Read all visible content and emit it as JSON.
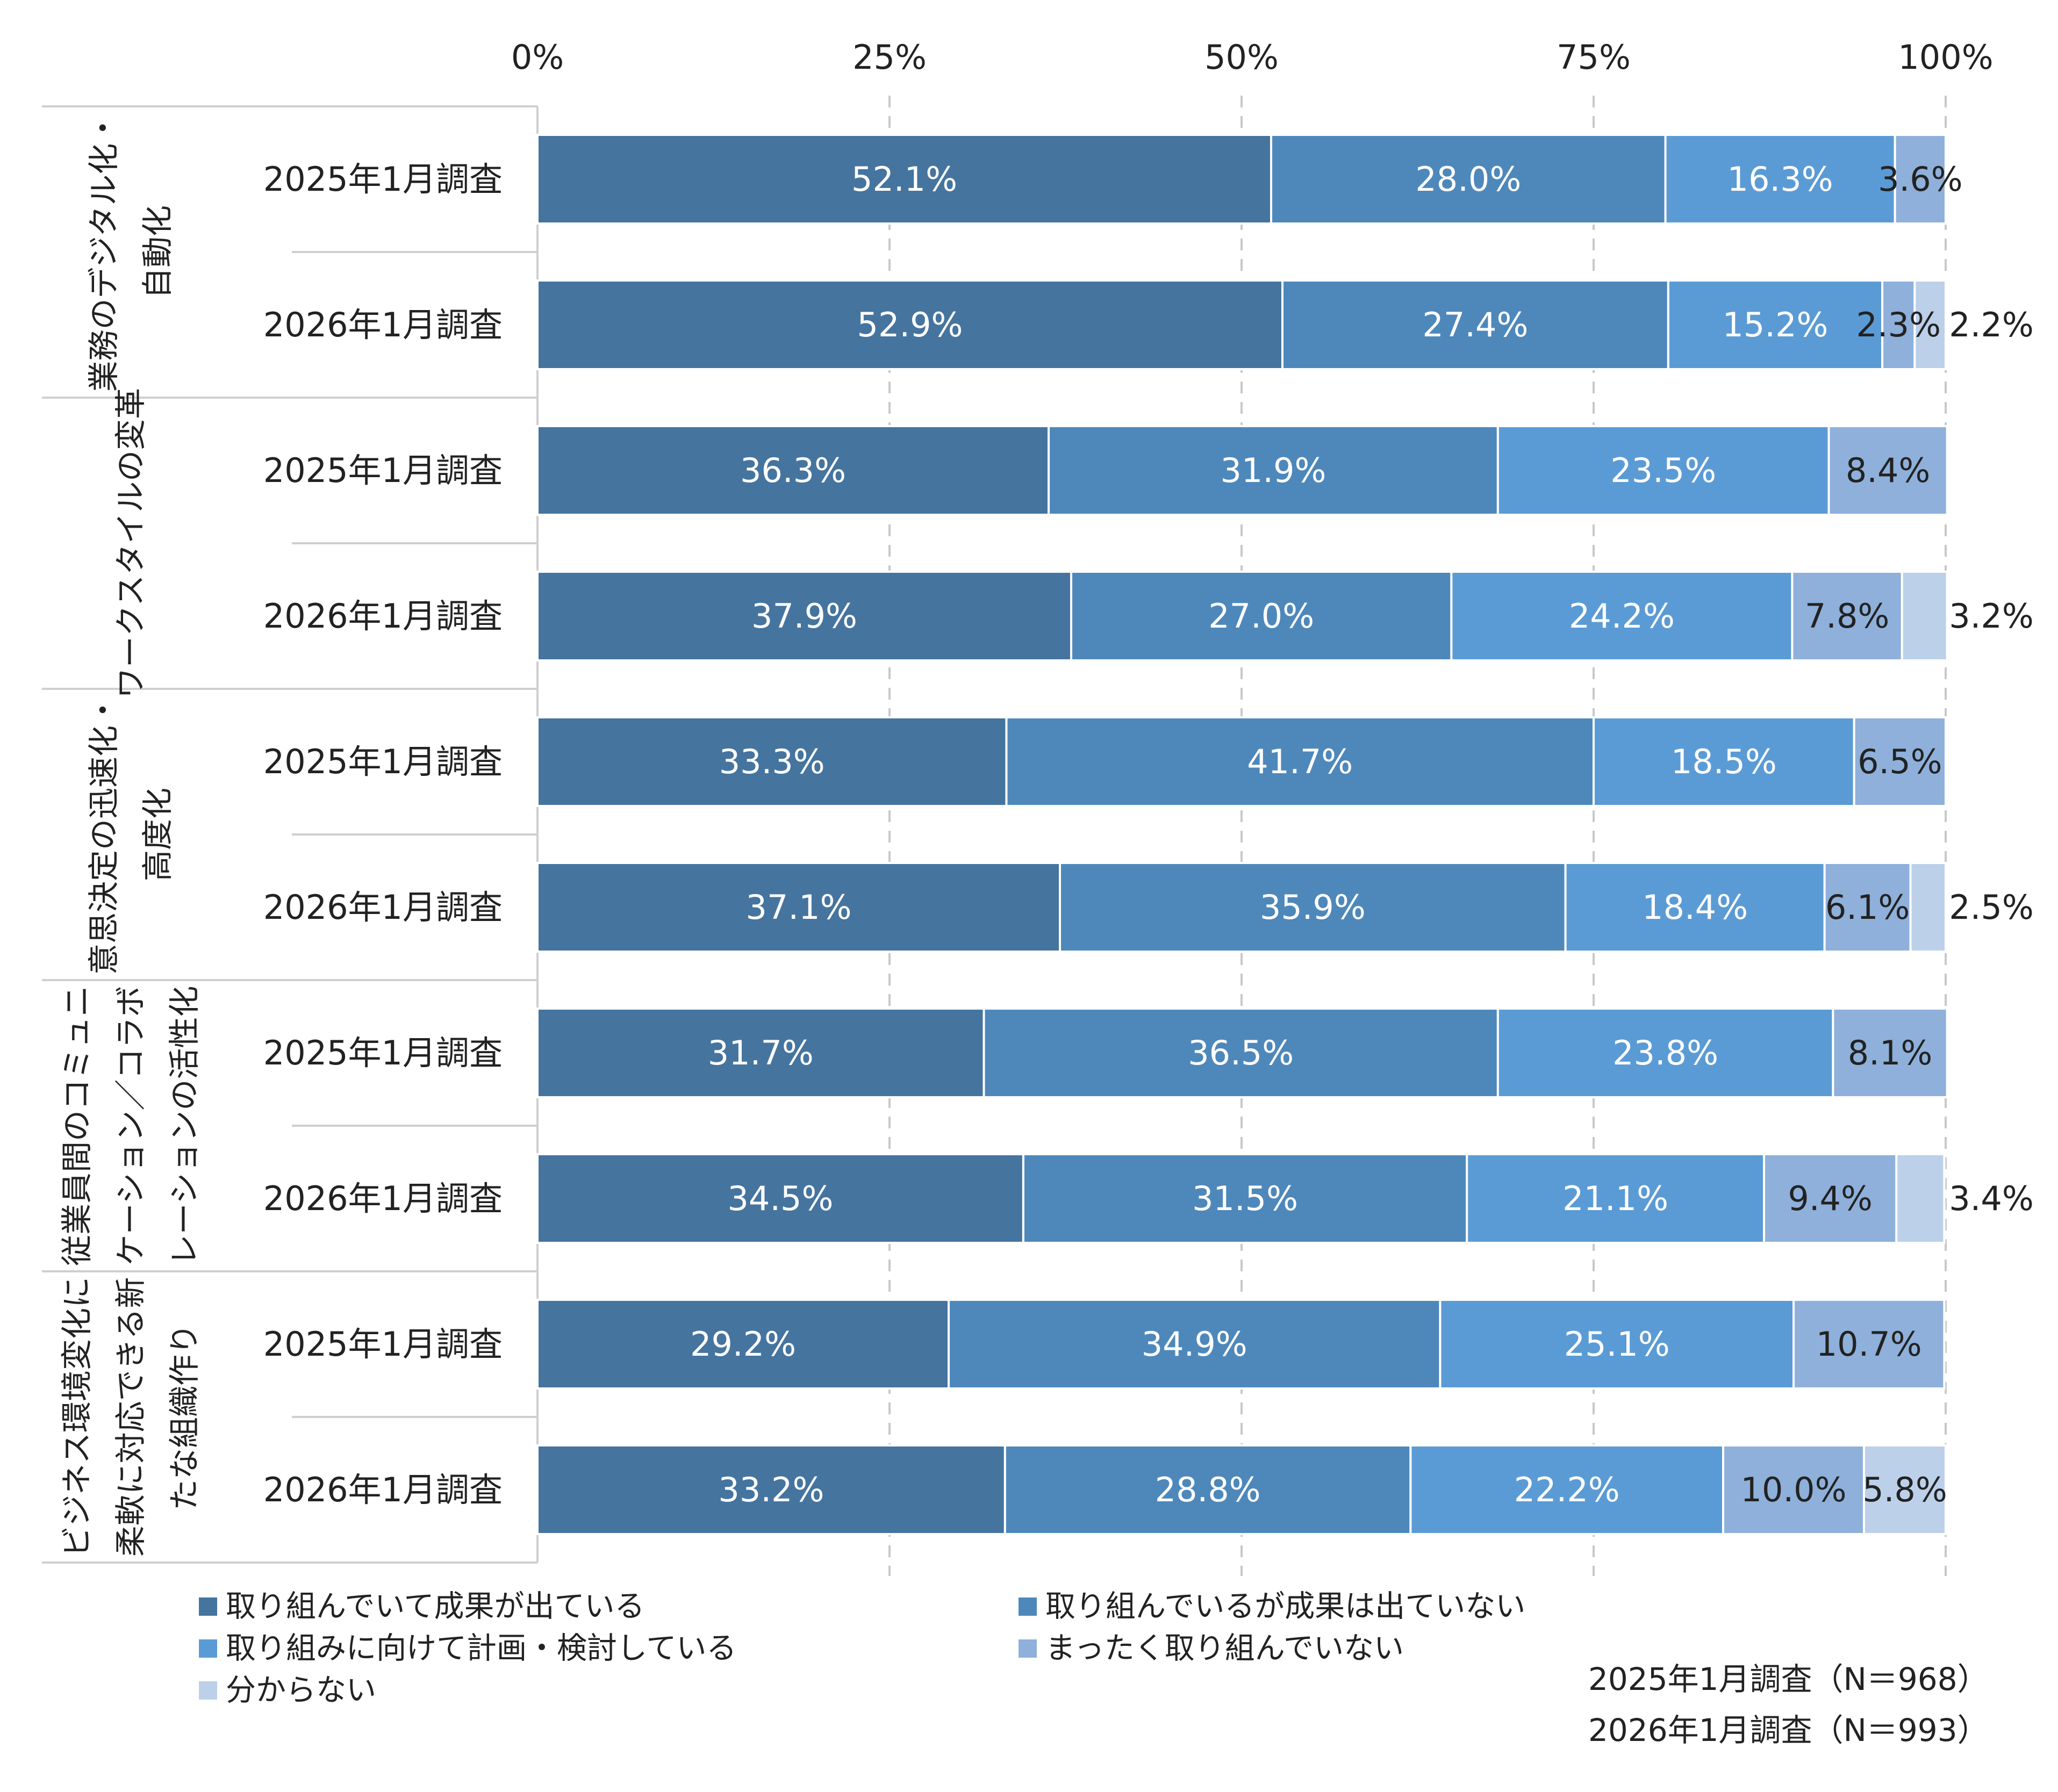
{
  "chart_data": {
    "type": "bar",
    "orientation": "horizontal-stacked-100",
    "x_ticks": [
      "0%",
      "25%",
      "50%",
      "75%",
      "100%"
    ],
    "xlim": [
      0,
      100
    ],
    "grid": "vertical-dashed",
    "colors": [
      "#45749f",
      "#4e88bb",
      "#5b9bd5",
      "#8eb0da",
      "#bcd0ea"
    ],
    "series": [
      {
        "name": "取り組んでいて成果が出ている"
      },
      {
        "name": "取り組んでいるが成果は出ていない"
      },
      {
        "name": "取り組みに向けて計画・検討している"
      },
      {
        "name": "まったく取り組んでいない"
      },
      {
        "name": "分からない"
      }
    ],
    "groups": [
      {
        "label_lines": [
          "業務のデジタル化・",
          "自動化"
        ],
        "rows": [
          {
            "label": "2025年1月調査",
            "values": [
              52.1,
              28.0,
              16.3,
              3.6,
              0
            ],
            "labels": [
              "52.1%",
              "28.0%",
              "16.3%",
              "3.6%",
              ""
            ],
            "outside": ""
          },
          {
            "label": "2026年1月調査",
            "values": [
              52.9,
              27.4,
              15.2,
              2.3,
              2.2
            ],
            "labels": [
              "52.9%",
              "27.4%",
              "15.2%",
              "2.3%",
              ""
            ],
            "outside": "2.2%"
          }
        ]
      },
      {
        "label_lines": [
          "ワークスタイルの変革"
        ],
        "rows": [
          {
            "label": "2025年1月調査",
            "values": [
              36.3,
              31.9,
              23.5,
              8.4,
              0
            ],
            "labels": [
              "36.3%",
              "31.9%",
              "23.5%",
              "8.4%",
              ""
            ],
            "outside": ""
          },
          {
            "label": "2026年1月調査",
            "values": [
              37.9,
              27.0,
              24.2,
              7.8,
              3.2
            ],
            "labels": [
              "37.9%",
              "27.0%",
              "24.2%",
              "7.8%",
              ""
            ],
            "outside": "3.2%"
          }
        ]
      },
      {
        "label_lines": [
          "意思決定の迅速化・",
          "高度化"
        ],
        "rows": [
          {
            "label": "2025年1月調査",
            "values": [
              33.3,
              41.7,
              18.5,
              6.5,
              0
            ],
            "labels": [
              "33.3%",
              "41.7%",
              "18.5%",
              "6.5%",
              ""
            ],
            "outside": ""
          },
          {
            "label": "2026年1月調査",
            "values": [
              37.1,
              35.9,
              18.4,
              6.1,
              2.5
            ],
            "labels": [
              "37.1%",
              "35.9%",
              "18.4%",
              "6.1%",
              ""
            ],
            "outside": "2.5%"
          }
        ]
      },
      {
        "label_lines": [
          "従業員間のコミュニ",
          "ケーション／コラボ",
          "レーションの活性化"
        ],
        "rows": [
          {
            "label": "2025年1月調査",
            "values": [
              31.7,
              36.5,
              23.8,
              8.1,
              0
            ],
            "labels": [
              "31.7%",
              "36.5%",
              "23.8%",
              "8.1%",
              ""
            ],
            "outside": ""
          },
          {
            "label": "2026年1月調査",
            "values": [
              34.5,
              31.5,
              21.1,
              9.4,
              3.4
            ],
            "labels": [
              "34.5%",
              "31.5%",
              "21.1%",
              "9.4%",
              ""
            ],
            "outside": "3.4%"
          }
        ]
      },
      {
        "label_lines": [
          "ビジネス環境変化に",
          "柔軟に対応できる新",
          "たな組織作り"
        ],
        "rows": [
          {
            "label": "2025年1月調査",
            "values": [
              29.2,
              34.9,
              25.1,
              10.7,
              0
            ],
            "labels": [
              "29.2%",
              "34.9%",
              "25.1%",
              "10.7%",
              ""
            ],
            "outside": ""
          },
          {
            "label": "2026年1月調査",
            "values": [
              33.2,
              28.8,
              22.2,
              10.0,
              5.8
            ],
            "labels": [
              "33.2%",
              "28.8%",
              "22.2%",
              "10.0%",
              "5.8%"
            ],
            "outside": ""
          }
        ]
      }
    ],
    "notes": [
      "2025年1月調査（N＝968）",
      "2026年1月調査（N＝993）"
    ]
  }
}
